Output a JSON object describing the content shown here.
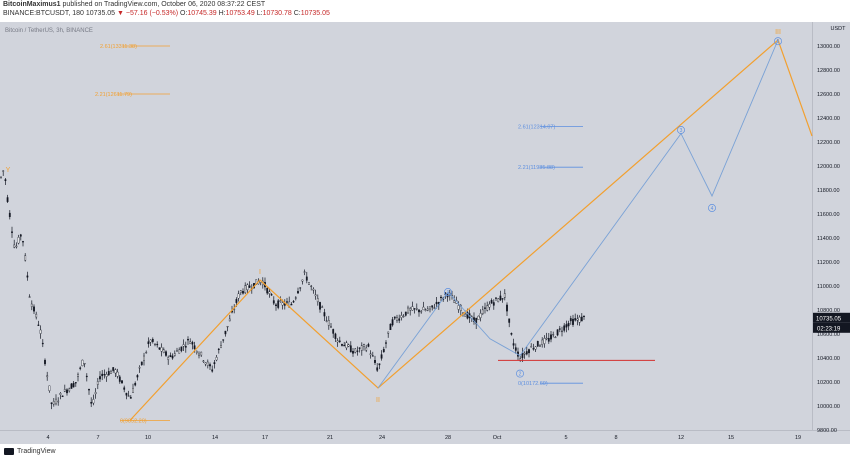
{
  "header": {
    "author": "BitcoinMaximus1",
    "published": "published on TradingView.com, October 06, 2020 08:37:22 CEST",
    "symbol": "BINANCE:BTCUSDT, 180",
    "last": "10735.05",
    "change": "▼ −57.16 (−0.53%)",
    "ohlc_o": "O:",
    "ohlc_o_val": "10745.39",
    "ohlc_h": "H:",
    "ohlc_h_val": "10753.49",
    "ohlc_l": "L:",
    "ohlc_l_val": "10730.78",
    "ohlc_c": "C:",
    "ohlc_c_val": "10735.05"
  },
  "footer": {
    "brand": "TradingView"
  },
  "chart_data": {
    "type": "candlestick",
    "title": "Bitcoin / TetherUS, 3h, BINANCE",
    "ylabel_unit": "USDT",
    "ylim": [
      9800,
      13200
    ],
    "x_ticks": [
      "4",
      "7",
      "10",
      "14",
      "17",
      "21",
      "24",
      "28",
      "Oct",
      "5",
      "8",
      "12",
      "15",
      "19"
    ],
    "y_ticks": [
      13000,
      12800,
      12600,
      12400,
      12200,
      12000,
      11800,
      11600,
      11400,
      11200,
      11000,
      10800,
      10600,
      10400,
      10200,
      10000,
      9800
    ],
    "last_price": 10735.05,
    "countdown": "02:23:19",
    "price_path": [
      [
        0,
        11880
      ],
      [
        4,
        11980
      ],
      [
        8,
        11700
      ],
      [
        15,
        11300
      ],
      [
        22,
        11450
      ],
      [
        30,
        10900
      ],
      [
        40,
        10650
      ],
      [
        52,
        10000
      ],
      [
        62,
        10100
      ],
      [
        76,
        10200
      ],
      [
        84,
        10400
      ],
      [
        92,
        9980
      ],
      [
        100,
        10250
      ],
      [
        115,
        10300
      ],
      [
        130,
        10060
      ],
      [
        150,
        10550
      ],
      [
        170,
        10400
      ],
      [
        190,
        10550
      ],
      [
        212,
        10300
      ],
      [
        240,
        10950
      ],
      [
        262,
        11050
      ],
      [
        275,
        10850
      ],
      [
        292,
        10850
      ],
      [
        305,
        11100
      ],
      [
        322,
        10800
      ],
      [
        338,
        10550
      ],
      [
        355,
        10450
      ],
      [
        368,
        10500
      ],
      [
        378,
        10300
      ],
      [
        392,
        10700
      ],
      [
        410,
        10800
      ],
      [
        430,
        10800
      ],
      [
        448,
        10940
      ],
      [
        462,
        10800
      ],
      [
        475,
        10700
      ],
      [
        490,
        10850
      ],
      [
        505,
        10920
      ],
      [
        512,
        10550
      ],
      [
        520,
        10400
      ],
      [
        530,
        10480
      ],
      [
        550,
        10560
      ],
      [
        570,
        10700
      ],
      [
        585,
        10735
      ]
    ],
    "orange_wave": [
      {
        "label": "Y",
        "x": 8,
        "y": 11900
      },
      {
        "label": "I",
        "x": 260,
        "y": 11050
      },
      {
        "label": "II",
        "x": 378,
        "y": 10150
      },
      {
        "label": "III",
        "x": 778,
        "y": 13050
      }
    ],
    "orange_path": [
      [
        130,
        9880
      ],
      [
        260,
        11050
      ],
      [
        378,
        10150
      ],
      [
        778,
        13050
      ],
      [
        812,
        12250
      ]
    ],
    "blue_path": [
      [
        378,
        10150
      ],
      [
        448,
        10950
      ],
      [
        490,
        10560
      ],
      [
        520,
        10420
      ],
      [
        681,
        12270
      ],
      [
        712,
        11750
      ],
      [
        778,
        13050
      ]
    ],
    "blue_labels": [
      {
        "label": "1",
        "x": 448,
        "y": 10950
      },
      {
        "label": "2",
        "x": 520,
        "y": 10270
      },
      {
        "label": "3",
        "x": 681,
        "y": 12300
      },
      {
        "label": "4",
        "x": 712,
        "y": 11650
      },
      {
        "label": "5",
        "x": 778,
        "y": 13040
      }
    ],
    "fib_levels": [
      {
        "label": "2.61(13311.38)",
        "color": "#f2a030",
        "y": 13000,
        "x0": 100,
        "x1": 170
      },
      {
        "label": "2.21(12611.79)",
        "color": "#f2a030",
        "y": 12600,
        "x0": 95,
        "x1": 170
      },
      {
        "label": "0(9852.20)",
        "color": "#f2a030",
        "y": 9880,
        "x0": 120,
        "x1": 170
      },
      {
        "label": "2.61(12314.07)",
        "color": "#5d8fe0",
        "y": 12330,
        "x0": 518,
        "x1": 583
      },
      {
        "label": "2.21(11985.88)",
        "color": "#5d8fe0",
        "y": 11990,
        "x0": 518,
        "x1": 583
      },
      {
        "label": "0(10172.60)",
        "color": "#5d8fe0",
        "y": 10190,
        "x0": 518,
        "x1": 583
      }
    ],
    "support_line": {
      "y": 10380,
      "x0": 498,
      "x1": 655,
      "color": "#d32f2f"
    },
    "colors": {
      "orange": "#f2a030",
      "blue": "#7aa2d6",
      "candle": "#131722",
      "background": "#d1d4dc",
      "price_label": "#131722"
    }
  }
}
